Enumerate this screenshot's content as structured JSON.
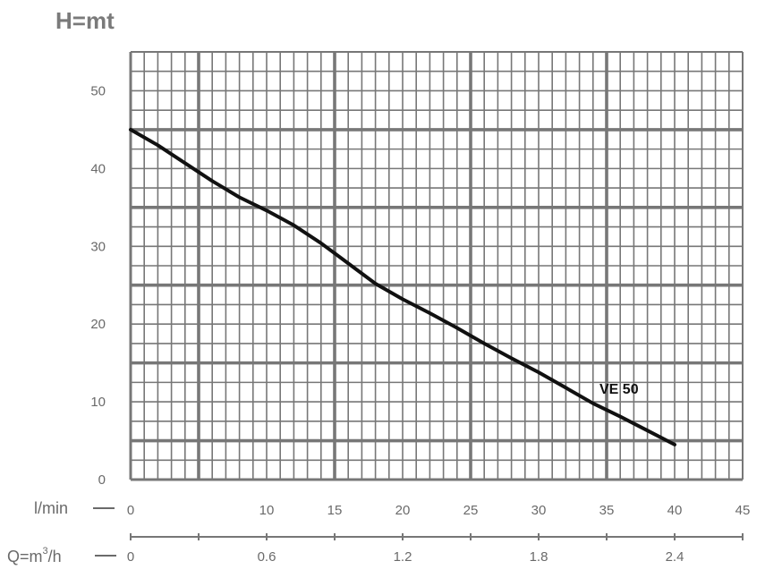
{
  "chart_data": {
    "type": "line",
    "title": "",
    "ylabel": "H=mt",
    "xlabel": "l/min",
    "x2label_prefix": "Q=m",
    "x2label_sup": "3",
    "x2label_suffix": "/h",
    "xlim": [
      0,
      45
    ],
    "ylim": [
      0,
      55
    ],
    "grid": true,
    "y_ticks": [
      "0",
      "10",
      "20",
      "30",
      "40",
      "50"
    ],
    "x_ticks": [
      "0",
      "10",
      "15",
      "20",
      "25",
      "30",
      "35",
      "40",
      "45"
    ],
    "x2_ticks": [
      "0",
      "0.6",
      "1.2",
      "1.8",
      "2.4"
    ],
    "series": [
      {
        "name": "VE 50",
        "x": [
          0,
          2,
          4,
          6,
          8,
          10,
          12,
          14,
          16,
          18,
          20,
          22,
          24,
          26,
          28,
          30,
          32,
          34,
          36,
          38,
          40
        ],
        "y": [
          45,
          43,
          40.7,
          38.4,
          36.3,
          34.6,
          32.7,
          30.4,
          27.8,
          25.2,
          23.2,
          21.4,
          19.5,
          17.5,
          15.6,
          13.8,
          11.8,
          9.8,
          8.1,
          6.3,
          4.5
        ]
      }
    ],
    "colors": {
      "curve": "#111111",
      "grid": "#777777",
      "axis_text": "#6a6a6a"
    }
  }
}
